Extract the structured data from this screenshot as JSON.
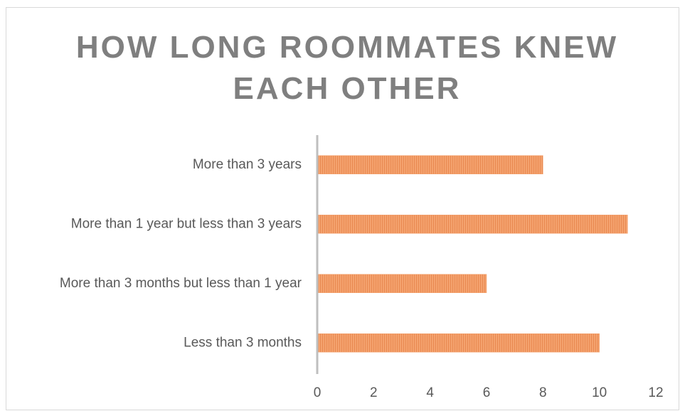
{
  "chart_data": {
    "type": "bar",
    "orientation": "horizontal",
    "title": "HOW LONG ROOMMATES KNEW EACH OTHER",
    "categories": [
      "More than 3 years",
      "More than 1 year but less than 3 years",
      "More than 3 months but less than 1 year",
      "Less than 3 months"
    ],
    "values": [
      8,
      11,
      6,
      10
    ],
    "color": "#f4a26e",
    "xlim": [
      0,
      12
    ],
    "xticks": [
      0,
      2,
      4,
      6,
      8,
      10,
      12
    ],
    "grid": false
  }
}
